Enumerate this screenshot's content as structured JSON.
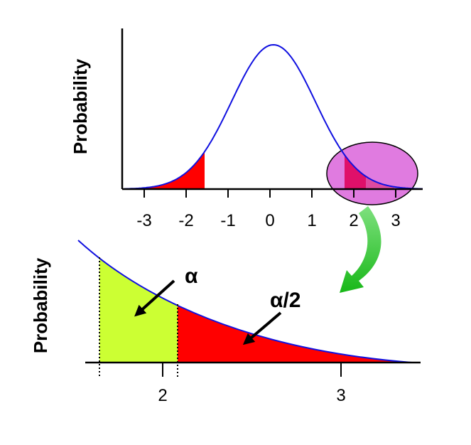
{
  "top": {
    "y_label": "Probability",
    "x_ticks": [
      "-3",
      "-2",
      "-1",
      "0",
      "1",
      "2",
      "3"
    ]
  },
  "bottom": {
    "y_label": "Probability",
    "x_ticks": [
      "2",
      "3"
    ]
  },
  "annotations": {
    "alpha": "α",
    "alpha_half": "α/2"
  }
}
